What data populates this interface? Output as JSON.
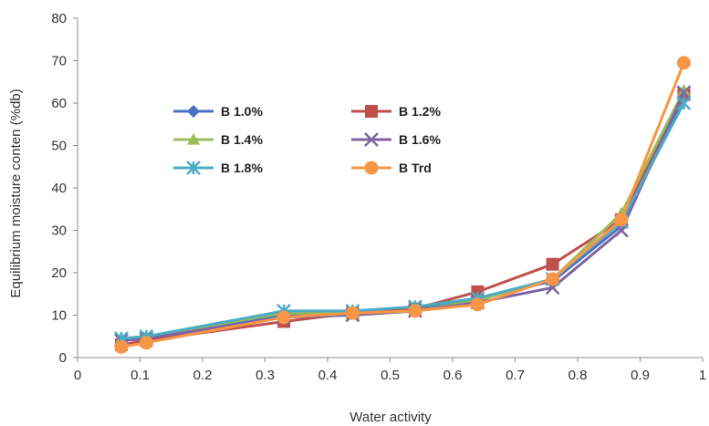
{
  "chart_data": {
    "type": "line",
    "title": "",
    "xlabel": "Water activity",
    "ylabel": "Equilibrium moisture conten (%db)",
    "xlim": [
      0,
      1
    ],
    "ylim": [
      0,
      80
    ],
    "x_ticks": [
      "0",
      "0.1",
      "0.2",
      "0.3",
      "0.4",
      "0.5",
      "0.6",
      "0.7",
      "0.8",
      "0.9",
      "1"
    ],
    "y_ticks": [
      "0",
      "10",
      "20",
      "30",
      "40",
      "50",
      "60",
      "70",
      "80"
    ],
    "grid": false,
    "legend_position": "upper-left",
    "x": [
      0.07,
      0.11,
      0.33,
      0.44,
      0.54,
      0.64,
      0.76,
      0.87,
      0.97
    ],
    "series": [
      {
        "name": "B 1.0%",
        "color": "#4472c4",
        "marker": "diamond",
        "values": [
          4.0,
          4.5,
          10.0,
          10.5,
          11.5,
          14.0,
          18.0,
          31.0,
          61.0
        ]
      },
      {
        "name": "B 1.2%",
        "color": "#c0504d",
        "marker": "square",
        "values": [
          3.0,
          4.0,
          8.5,
          10.5,
          11.5,
          15.5,
          22.0,
          32.5,
          62.0
        ]
      },
      {
        "name": "B 1.4%",
        "color": "#9bbb59",
        "marker": "triangle",
        "values": [
          4.5,
          5.0,
          10.5,
          10.5,
          11.0,
          13.5,
          18.5,
          34.0,
          63.0
        ]
      },
      {
        "name": "B 1.6%",
        "color": "#8064a2",
        "marker": "x",
        "values": [
          4.0,
          4.5,
          9.5,
          10.0,
          11.0,
          13.0,
          16.5,
          30.0,
          62.5
        ]
      },
      {
        "name": "B 1.8%",
        "color": "#4bacc6",
        "marker": "star",
        "values": [
          4.5,
          5.0,
          11.0,
          11.0,
          12.0,
          14.0,
          18.5,
          32.0,
          60.0
        ]
      },
      {
        "name": "B Trd",
        "color": "#f79646",
        "marker": "circle",
        "values": [
          2.5,
          3.5,
          9.5,
          10.5,
          11.0,
          12.5,
          18.5,
          32.5,
          69.5
        ]
      }
    ]
  }
}
